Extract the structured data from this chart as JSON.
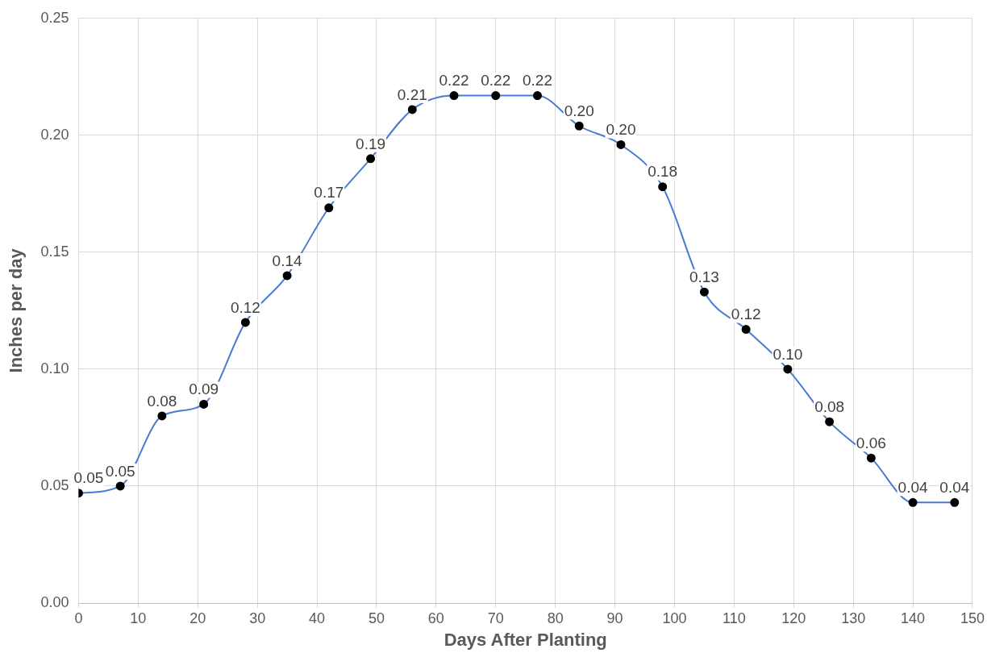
{
  "chart_data": {
    "type": "line",
    "xlabel": "Days After Planting",
    "ylabel": "Inches per day",
    "x": [
      0,
      7,
      14,
      21,
      28,
      35,
      42,
      49,
      56,
      63,
      70,
      77,
      84,
      91,
      98,
      105,
      112,
      119,
      126,
      133,
      140,
      147
    ],
    "series": [
      {
        "color": "#4a7bd0",
        "values": [
          0.047,
          0.05,
          0.08,
          0.085,
          0.12,
          0.14,
          0.169,
          0.19,
          0.211,
          0.217,
          0.217,
          0.217,
          0.204,
          0.196,
          0.178,
          0.133,
          0.117,
          0.1,
          0.0775,
          0.062,
          0.043,
          0.043
        ],
        "value_labels": [
          "0.05",
          "0.05",
          "0.08",
          "0.09",
          "0.12",
          "0.14",
          "0.17",
          "0.19",
          "0.21",
          "0.22",
          "0.22",
          "0.22",
          "0.20",
          "0.20",
          "0.18",
          "0.13",
          "0.12",
          "0.10",
          "0.08",
          "0.06",
          "0.04",
          "0.04"
        ]
      }
    ],
    "xlim": [
      0,
      150
    ],
    "xticks": [
      0,
      10,
      20,
      30,
      40,
      50,
      60,
      70,
      80,
      90,
      100,
      110,
      120,
      130,
      140,
      150
    ],
    "ylim": [
      0,
      0.25
    ],
    "yticks": [
      {
        "value": 0,
        "label": "0.00"
      },
      {
        "value": 0.05,
        "label": "0.05"
      },
      {
        "value": 0.1,
        "label": "0.10"
      },
      {
        "value": 0.15,
        "label": "0.15"
      },
      {
        "value": 0.2,
        "label": "0.20"
      },
      {
        "value": 0.25,
        "label": "0.25"
      }
    ],
    "grid": true,
    "legend": false,
    "marker": "circle",
    "line_style": "solid"
  }
}
